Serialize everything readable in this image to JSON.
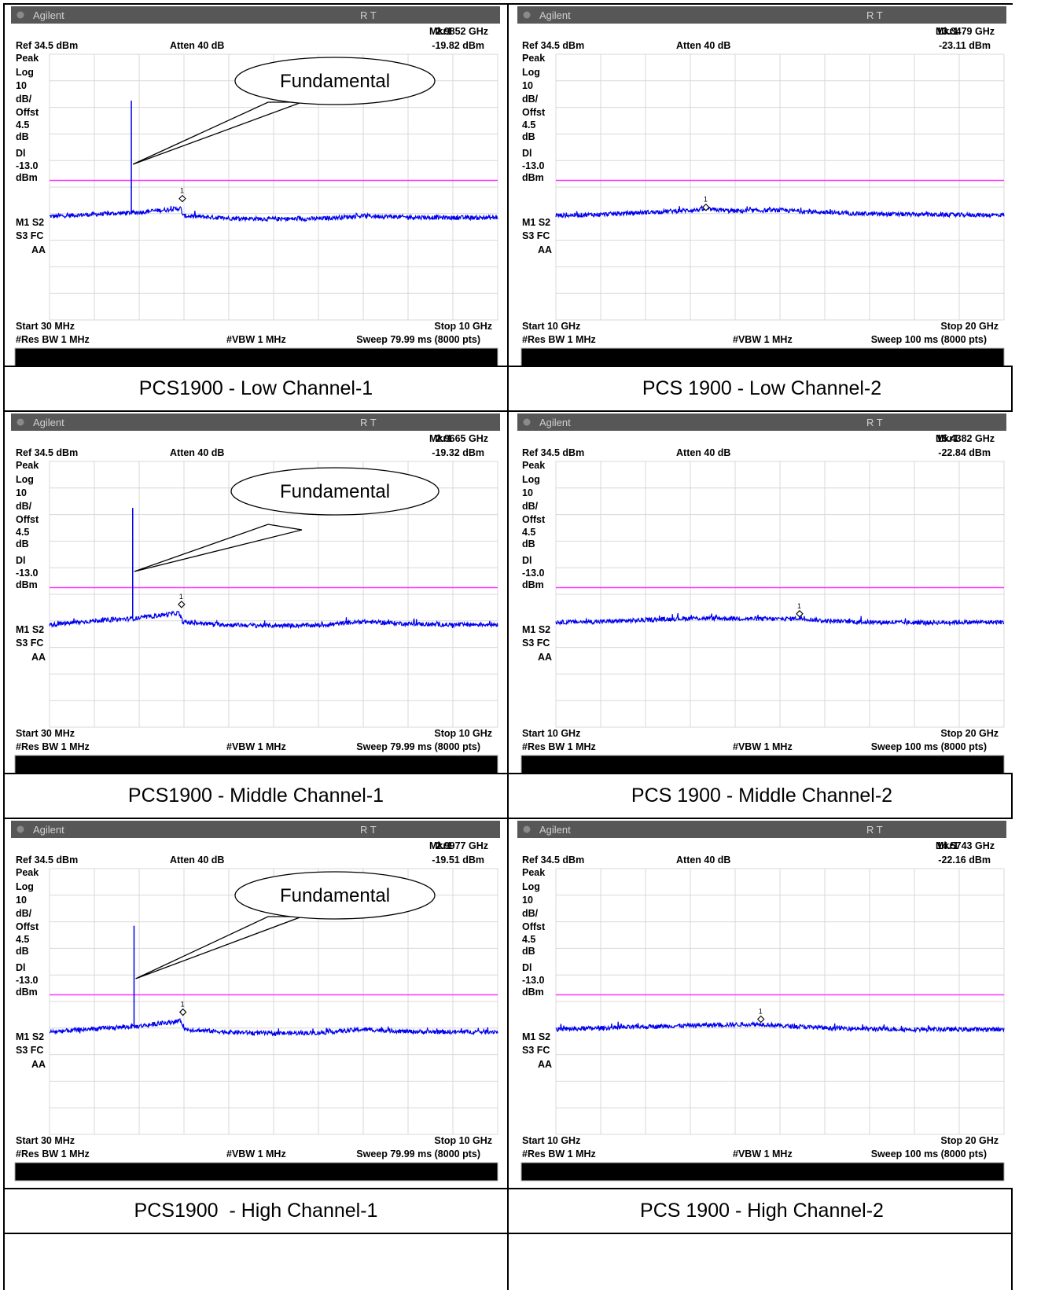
{
  "colors": {
    "trace": "#0000ee",
    "display_line": "#ff33ff",
    "title_bar": "#575757",
    "grid": "#d8d8d8",
    "status_bar": "#000000"
  },
  "panels": [
    {
      "brand": "Agilent",
      "status": "R   T",
      "marker_label": "Mkr1",
      "marker_freq": "2.9852 GHz",
      "marker_level": "-19.82 dBm",
      "ref": "Ref 34.5 dBm",
      "atten": "Atten 40 dB",
      "side_labels": [
        "Peak",
        "Log",
        "10",
        "dB/",
        "Offst",
        "4.5",
        "dB",
        "Dl",
        "-13.0",
        "dBm"
      ],
      "mode_labels": [
        "M1  S2",
        "S3  FC",
        "AA"
      ],
      "start": "Start 30 MHz",
      "stop": "Stop 10 GHz",
      "res_bw": "#Res BW 1 MHz",
      "vbw": "#VBW 1 MHz",
      "sweep": "Sweep 79.99 ms (8000 pts)",
      "callout": "Fundamental",
      "caption": "PCS1900 - Low Channel-1",
      "chart_data": {
        "type": "line",
        "x_range_ghz": [
          0.03,
          10
        ],
        "y_range_dbm": [
          34.5,
          -65.5
        ],
        "display_line_dbm": -13.0,
        "marker": {
          "label": "1",
          "freq_ghz": 2.9852,
          "level_dbm": -19.82
        },
        "fundamental": {
          "freq_ghz": 1.85,
          "peak_dbm": 17
        },
        "noise_floor": {
          "x_ghz": [
            0.03,
            1.0,
            2.0,
            2.95,
            3.0,
            4.0,
            5.0,
            6.0,
            7.0,
            8.0,
            9.0,
            10.0
          ],
          "y_dbm": [
            -26.5,
            -25.8,
            -25.0,
            -23.5,
            -26.3,
            -27.2,
            -27.5,
            -27.4,
            -26.3,
            -26.8,
            -27.0,
            -27.0
          ]
        }
      }
    },
    {
      "brand": "Agilent",
      "status": "R   T",
      "marker_label": "Mkr1",
      "marker_freq": "13.3479 GHz",
      "marker_level": "-23.11 dBm",
      "ref": "Ref 34.5 dBm",
      "atten": "Atten 40 dB",
      "side_labels": [
        "Peak",
        "Log",
        "10",
        "dB/",
        "Offst",
        "4.5",
        "dB",
        "Dl",
        "-13.0",
        "dBm"
      ],
      "mode_labels": [
        "M1  S2",
        "S3  FC",
        "AA"
      ],
      "start": "Start 10 GHz",
      "stop": "Stop 20 GHz",
      "res_bw": "#Res BW 1 MHz",
      "vbw": "#VBW 1 MHz",
      "sweep": "Sweep 100 ms (8000 pts)",
      "callout": "",
      "caption": "PCS 1900 - Low Channel-2",
      "chart_data": {
        "type": "line",
        "x_range_ghz": [
          10,
          20
        ],
        "y_range_dbm": [
          34.5,
          -65.5
        ],
        "display_line_dbm": -13.0,
        "marker": {
          "label": "1",
          "freq_ghz": 13.3479,
          "level_dbm": -23.11
        },
        "noise_floor": {
          "x_ghz": [
            10,
            11,
            12,
            13,
            13.35,
            14,
            15,
            16,
            17,
            18,
            19,
            20
          ],
          "y_dbm": [
            -26.2,
            -25.8,
            -25.0,
            -24.2,
            -23.8,
            -24.5,
            -24.2,
            -25.0,
            -25.6,
            -25.8,
            -26.0,
            -26.0
          ]
        }
      }
    },
    {
      "brand": "Agilent",
      "status": "R   T",
      "marker_label": "Mkr1",
      "marker_freq": "2.9665 GHz",
      "marker_level": "-19.32 dBm",
      "ref": "Ref 34.5 dBm",
      "atten": "Atten 40 dB",
      "side_labels": [
        "Peak",
        "Log",
        "10",
        "dB/",
        "Offst",
        "4.5",
        "dB",
        "Dl",
        "-13.0",
        "dBm"
      ],
      "mode_labels": [
        "M1  S2",
        "S3  FC",
        "AA"
      ],
      "start": "Start 30 MHz",
      "stop": "Stop 10 GHz",
      "res_bw": "#Res BW 1 MHz",
      "vbw": "#VBW 1 MHz",
      "sweep": "Sweep 79.99 ms (8000 pts)",
      "callout": "Fundamental",
      "caption": "PCS1900 - Middle Channel-1",
      "chart_data": {
        "type": "line",
        "x_range_ghz": [
          0.03,
          10
        ],
        "y_range_dbm": [
          34.5,
          -65.5
        ],
        "display_line_dbm": -13.0,
        "marker": {
          "label": "1",
          "freq_ghz": 2.9665,
          "level_dbm": -19.32
        },
        "fundamental": {
          "freq_ghz": 1.88,
          "peak_dbm": 17
        },
        "noise_floor": {
          "x_ghz": [
            0.03,
            1.0,
            2.0,
            2.9,
            3.0,
            4.0,
            5.0,
            6.0,
            7.0,
            8.0,
            9.0,
            10.0
          ],
          "y_dbm": [
            -27.0,
            -25.5,
            -24.5,
            -22.5,
            -26.0,
            -27.0,
            -27.3,
            -27.2,
            -25.8,
            -26.6,
            -27.0,
            -26.8
          ]
        }
      }
    },
    {
      "brand": "Agilent",
      "status": "R   T",
      "marker_label": "Mkr1",
      "marker_freq": "15.4382 GHz",
      "marker_level": "-22.84 dBm",
      "ref": "Ref 34.5 dBm",
      "atten": "Atten 40 dB",
      "side_labels": [
        "Peak",
        "Log",
        "10",
        "dB/",
        "Offst",
        "4.5",
        "dB",
        "Dl",
        "-13.0",
        "dBm"
      ],
      "mode_labels": [
        "M1  S2",
        "S3  FC",
        "AA"
      ],
      "start": "Start 10 GHz",
      "stop": "Stop 20 GHz",
      "res_bw": "#Res BW 1 MHz",
      "vbw": "#VBW 1 MHz",
      "sweep": "Sweep 100 ms (8000 pts)",
      "callout": "",
      "caption": "PCS 1900 - Middle Channel-2",
      "chart_data": {
        "type": "line",
        "x_range_ghz": [
          10,
          20
        ],
        "y_range_dbm": [
          34.5,
          -65.5
        ],
        "display_line_dbm": -13.0,
        "marker": {
          "label": "1",
          "freq_ghz": 15.4382,
          "level_dbm": -22.84
        },
        "noise_floor": {
          "x_ghz": [
            10,
            11,
            12,
            13,
            14,
            15,
            15.44,
            16,
            17,
            18,
            19,
            20
          ],
          "y_dbm": [
            -26.0,
            -25.8,
            -25.2,
            -24.5,
            -24.6,
            -24.8,
            -24.5,
            -25.5,
            -26.0,
            -26.2,
            -26.0,
            -26.0
          ]
        }
      }
    },
    {
      "brand": "Agilent",
      "status": "R   T",
      "marker_label": "Mkr1",
      "marker_freq": "2.9977 GHz",
      "marker_level": "-19.51 dBm",
      "ref": "Ref 34.5 dBm",
      "atten": "Atten 40 dB",
      "side_labels": [
        "Peak",
        "Log",
        "10",
        "dB/",
        "Offst",
        "4.5",
        "dB",
        "Dl",
        "-13.0",
        "dBm"
      ],
      "mode_labels": [
        "M1  S2",
        "S3  FC",
        "AA"
      ],
      "start": "Start 30 MHz",
      "stop": "Stop 10 GHz",
      "res_bw": "#Res BW 1 MHz",
      "vbw": "#VBW 1 MHz",
      "sweep": "Sweep 79.99 ms (8000 pts)",
      "callout": "Fundamental",
      "caption": "PCS1900  - High Channel-1",
      "chart_data": {
        "type": "line",
        "x_range_ghz": [
          0.03,
          10
        ],
        "y_range_dbm": [
          34.5,
          -65.5
        ],
        "display_line_dbm": -13.0,
        "marker": {
          "label": "1",
          "freq_ghz": 2.9977,
          "level_dbm": -19.51
        },
        "fundamental": {
          "freq_ghz": 1.91,
          "peak_dbm": 13
        },
        "noise_floor": {
          "x_ghz": [
            0.03,
            1.0,
            2.0,
            2.95,
            3.05,
            4.0,
            5.0,
            6.0,
            7.0,
            8.0,
            9.0,
            10.0
          ],
          "y_dbm": [
            -27.0,
            -25.8,
            -24.8,
            -22.8,
            -26.0,
            -27.0,
            -27.5,
            -27.3,
            -26.0,
            -26.8,
            -27.0,
            -26.8
          ]
        }
      }
    },
    {
      "brand": "Agilent",
      "status": "R   T",
      "marker_label": "Mkr1",
      "marker_freq": "14.5743 GHz",
      "marker_level": "-22.16 dBm",
      "ref": "Ref 34.5 dBm",
      "atten": "Atten 40 dB",
      "side_labels": [
        "Peak",
        "Log",
        "10",
        "dB/",
        "Offst",
        "4.5",
        "dB",
        "Dl",
        "-13.0",
        "dBm"
      ],
      "mode_labels": [
        "M1  S2",
        "S3  FC",
        "AA"
      ],
      "start": "Start 10 GHz",
      "stop": "Stop 20 GHz",
      "res_bw": "#Res BW 1 MHz",
      "vbw": "#VBW 1 MHz",
      "sweep": "Sweep 100 ms (8000 pts)",
      "callout": "",
      "caption": "PCS 1900 - High Channel-2",
      "chart_data": {
        "type": "line",
        "x_range_ghz": [
          10,
          20
        ],
        "y_range_dbm": [
          34.5,
          -65.5
        ],
        "display_line_dbm": -13.0,
        "marker": {
          "label": "1",
          "freq_ghz": 14.5743,
          "level_dbm": -22.16
        },
        "noise_floor": {
          "x_ghz": [
            10,
            11,
            12,
            13,
            14,
            14.57,
            15,
            16,
            17,
            18,
            19,
            20
          ],
          "y_dbm": [
            -26.0,
            -25.5,
            -25.0,
            -24.5,
            -24.2,
            -24.0,
            -24.6,
            -25.4,
            -25.8,
            -26.0,
            -26.0,
            -26.0
          ]
        }
      }
    }
  ]
}
